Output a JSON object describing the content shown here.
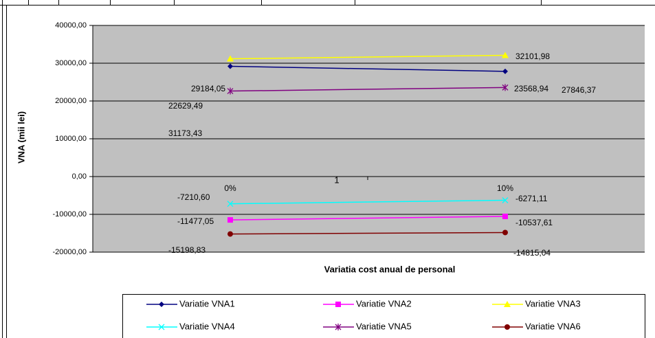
{
  "chart_data": {
    "type": "line",
    "y_axis_label": "VNA (mii lei)",
    "x_axis_label": "Variatia cost anual de personal",
    "annotation": "1",
    "categories": [
      "0%",
      "10%"
    ],
    "ylim": [
      -20000,
      40000
    ],
    "yticks": [
      {
        "value": -20000,
        "label": "-20000,00"
      },
      {
        "value": -10000,
        "label": "-10000,00"
      },
      {
        "value": 0,
        "label": "0,00"
      },
      {
        "value": 10000,
        "label": "10000,00"
      },
      {
        "value": 20000,
        "label": "20000,00"
      },
      {
        "value": 30000,
        "label": "30000,00"
      },
      {
        "value": 40000,
        "label": "40000,00"
      }
    ],
    "grid": true,
    "legend": "bottom",
    "series": [
      {
        "name": "Variatie VNA1",
        "color": "#000080",
        "marker": "diamond",
        "values": [
          29184.05,
          27846.37
        ],
        "value_labels": [
          "29184,05",
          "27846,37"
        ]
      },
      {
        "name": "Variatie VNA2",
        "color": "#ff00ff",
        "marker": "square",
        "values": [
          -11477.05,
          -10537.61
        ],
        "value_labels": [
          "-11477,05",
          "-10537,61"
        ]
      },
      {
        "name": "Variatie VNA3",
        "color": "#ffff00",
        "marker": "triangle",
        "values": [
          31173.43,
          32101.98
        ],
        "value_labels": [
          "31173,43",
          "32101,98"
        ]
      },
      {
        "name": "Variatie VNA4",
        "color": "#00ffff",
        "marker": "x",
        "values": [
          -7210.6,
          -6271.11
        ],
        "value_labels": [
          "-7210,60",
          "-6271,11"
        ]
      },
      {
        "name": "Variatie VNA5",
        "color": "#800080",
        "marker": "star",
        "values": [
          22629.49,
          23568.94
        ],
        "value_labels": [
          "22629,49",
          "23568,94"
        ]
      },
      {
        "name": "Variatie VNA6",
        "color": "#800000",
        "marker": "circle",
        "values": [
          -15198.83,
          -14815.04
        ],
        "value_labels": [
          "-15198,83",
          "-14815,04"
        ]
      }
    ]
  }
}
